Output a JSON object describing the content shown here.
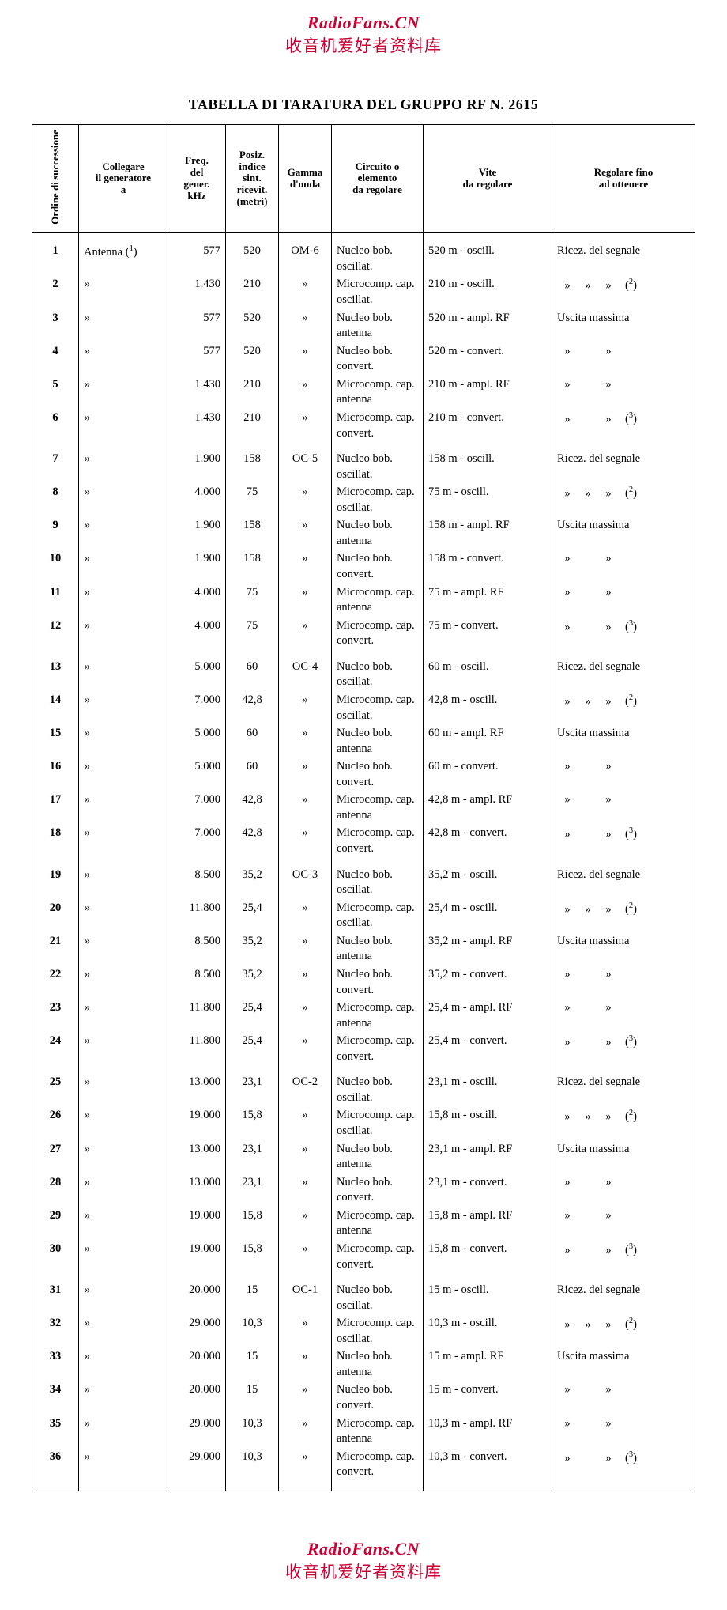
{
  "watermark": {
    "site": "RadioFans.CN",
    "cn": "收音机爱好者资料库"
  },
  "title": "TABELLA DI TARATURA DEL GRUPPO RF N. 2615",
  "colors": {
    "watermark": "#cc0033",
    "text": "#000000",
    "background": "#ffffff"
  },
  "headers": {
    "order": "Ordine di successione",
    "collegare_l1": "Collegare",
    "collegare_l2": "il generatore",
    "collegare_l3": "a",
    "freq_l1": "Freq.",
    "freq_l2": "del",
    "freq_l3": "gener.",
    "freq_l4": "kHz",
    "pos_l1": "Posiz.",
    "pos_l2": "indice",
    "pos_l3": "sint.",
    "pos_l4": "ricevit.",
    "pos_l5": "(metri)",
    "gamma_l1": "Gamma",
    "gamma_l2": "d'onda",
    "circ_l1": "Circuito o elemento",
    "circ_l2": "da regolare",
    "vite_l1": "Vite",
    "vite_l2": "da regolare",
    "reg_l1": "Regolare fino",
    "reg_l2": "ad ottenere"
  },
  "strings": {
    "antenna": "Antenna",
    "note1": "1",
    "note2": "2",
    "note3": "3",
    "ditto": "»",
    "ricez": "Ricez. del segnale",
    "uscita": "Uscita massima"
  },
  "circ": {
    "nbo": "Nucleo bob. oscillat.",
    "mco": "Microcomp. cap. oscillat.",
    "nba": "Nucleo bob. antenna",
    "nbc": "Nucleo bob. convert.",
    "mca": "Microcomp. cap. antenna",
    "mcc": "Microcomp. cap. convert."
  },
  "groups": [
    {
      "gamma": "OM-6",
      "rows": [
        {
          "n": "1",
          "f": "577",
          "p": "520",
          "v": "520 m - oscill."
        },
        {
          "n": "2",
          "f": "1.430",
          "p": "210",
          "v": "210 m - oscill."
        },
        {
          "n": "3",
          "f": "577",
          "p": "520",
          "v": "520 m - ampl. RF"
        },
        {
          "n": "4",
          "f": "577",
          "p": "520",
          "v": "520 m - convert."
        },
        {
          "n": "5",
          "f": "1.430",
          "p": "210",
          "v": "210 m - ampl. RF"
        },
        {
          "n": "6",
          "f": "1.430",
          "p": "210",
          "v": "210 m - convert."
        }
      ]
    },
    {
      "gamma": "OC-5",
      "rows": [
        {
          "n": "7",
          "f": "1.900",
          "p": "158",
          "v": "158 m - oscill."
        },
        {
          "n": "8",
          "f": "4.000",
          "p": "75",
          "v": "75 m - oscill."
        },
        {
          "n": "9",
          "f": "1.900",
          "p": "158",
          "v": "158 m - ampl. RF"
        },
        {
          "n": "10",
          "f": "1.900",
          "p": "158",
          "v": "158 m - convert."
        },
        {
          "n": "11",
          "f": "4.000",
          "p": "75",
          "v": "75 m - ampl. RF"
        },
        {
          "n": "12",
          "f": "4.000",
          "p": "75",
          "v": "75 m - convert."
        }
      ]
    },
    {
      "gamma": "OC-4",
      "rows": [
        {
          "n": "13",
          "f": "5.000",
          "p": "60",
          "v": "60 m - oscill."
        },
        {
          "n": "14",
          "f": "7.000",
          "p": "42,8",
          "v": "42,8 m - oscill."
        },
        {
          "n": "15",
          "f": "5.000",
          "p": "60",
          "v": "60 m - ampl. RF"
        },
        {
          "n": "16",
          "f": "5.000",
          "p": "60",
          "v": "60 m - convert."
        },
        {
          "n": "17",
          "f": "7.000",
          "p": "42,8",
          "v": "42,8 m - ampl. RF"
        },
        {
          "n": "18",
          "f": "7.000",
          "p": "42,8",
          "v": "42,8 m - convert."
        }
      ]
    },
    {
      "gamma": "OC-3",
      "rows": [
        {
          "n": "19",
          "f": "8.500",
          "p": "35,2",
          "v": "35,2 m - oscill."
        },
        {
          "n": "20",
          "f": "11.800",
          "p": "25,4",
          "v": "25,4 m - oscill."
        },
        {
          "n": "21",
          "f": "8.500",
          "p": "35,2",
          "v": "35,2 m - ampl. RF"
        },
        {
          "n": "22",
          "f": "8.500",
          "p": "35,2",
          "v": "35,2 m - convert."
        },
        {
          "n": "23",
          "f": "11.800",
          "p": "25,4",
          "v": "25,4 m - ampl. RF"
        },
        {
          "n": "24",
          "f": "11.800",
          "p": "25,4",
          "v": "25,4 m - convert."
        }
      ]
    },
    {
      "gamma": "OC-2",
      "rows": [
        {
          "n": "25",
          "f": "13.000",
          "p": "23,1",
          "v": "23,1 m - oscill."
        },
        {
          "n": "26",
          "f": "19.000",
          "p": "15,8",
          "v": "15,8 m - oscill."
        },
        {
          "n": "27",
          "f": "13.000",
          "p": "23,1",
          "v": "23,1 m - ampl. RF"
        },
        {
          "n": "28",
          "f": "13.000",
          "p": "23,1",
          "v": "23,1 m - convert."
        },
        {
          "n": "29",
          "f": "19.000",
          "p": "15,8",
          "v": "15,8 m - ampl. RF"
        },
        {
          "n": "30",
          "f": "19.000",
          "p": "15,8",
          "v": "15,8 m - convert."
        }
      ]
    },
    {
      "gamma": "OC-1",
      "rows": [
        {
          "n": "31",
          "f": "20.000",
          "p": "15",
          "v": "15 m - oscill."
        },
        {
          "n": "32",
          "f": "29.000",
          "p": "10,3",
          "v": "10,3 m - oscill."
        },
        {
          "n": "33",
          "f": "20.000",
          "p": "15",
          "v": "15 m - ampl. RF"
        },
        {
          "n": "34",
          "f": "20.000",
          "p": "15",
          "v": "15 m - convert."
        },
        {
          "n": "35",
          "f": "29.000",
          "p": "10,3",
          "v": "10,3 m - ampl. RF"
        },
        {
          "n": "36",
          "f": "29.000",
          "p": "10,3",
          "v": "10,3 m - convert."
        }
      ]
    }
  ]
}
